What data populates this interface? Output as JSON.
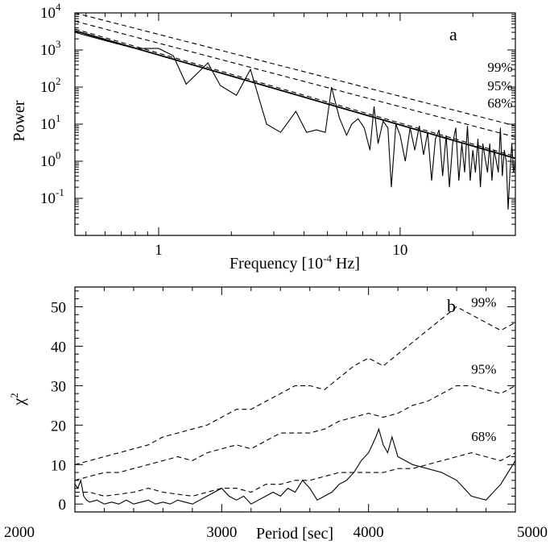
{
  "chart_data": [
    {
      "type": "line",
      "panel_label": "a",
      "xlabel": "Frequency [10",
      "xlabel_exp": "-4",
      "xlabel_tail": " Hz]",
      "ylabel": "Power",
      "x_scale": "log",
      "y_scale": "log",
      "xlim": [
        0.45,
        30
      ],
      "ylim": [
        0.01,
        10000
      ],
      "x_tick_labels": [
        {
          "value": 1,
          "label": "1"
        },
        {
          "value": 10,
          "label": "10"
        }
      ],
      "y_tick_labels": [
        {
          "value": 10000,
          "base": "10",
          "exp": "4"
        },
        {
          "value": 1000,
          "base": "10",
          "exp": "3"
        },
        {
          "value": 100,
          "base": "10",
          "exp": "2"
        },
        {
          "value": 10,
          "base": "10",
          "exp": "1"
        },
        {
          "value": 1,
          "base": "10",
          "exp": "0"
        },
        {
          "value": 0.1,
          "base": "10",
          "exp": "-1"
        }
      ],
      "level_labels": [
        {
          "text": "99%",
          "x": 23,
          "y": 260
        },
        {
          "text": "95%",
          "x": 23,
          "y": 82
        },
        {
          "text": "68%",
          "x": 23,
          "y": 28
        }
      ],
      "series": [
        {
          "style": "solid",
          "x": [
            0.45,
            0.6,
            0.8,
            1.0,
            1.15,
            1.3,
            1.6,
            1.8,
            2.1,
            2.4,
            2.8,
            3.2,
            3.7,
            4.1,
            4.5,
            4.9,
            5.2,
            5.6,
            6.0,
            6.3,
            6.7,
            7.1,
            7.5,
            7.8,
            8.1,
            8.5,
            8.9,
            9.2,
            9.6,
            10.0,
            10.5,
            11.0,
            11.5,
            12.0,
            12.5,
            13.0,
            13.5,
            14.0,
            14.5,
            15.0,
            15.5,
            16.0,
            16.5,
            17.0,
            17.5,
            18.0,
            18.5,
            19.0,
            19.5,
            20.0,
            20.5,
            21.0,
            21.5,
            22.0,
            22.5,
            23.0,
            23.5,
            24.0,
            24.5,
            25.0,
            25.5,
            26.0,
            26.5,
            27.0,
            27.5,
            28.0,
            28.5,
            29.0,
            29.5,
            30.0
          ],
          "y": [
            3000,
            1800,
            1100,
            1100,
            700,
            120,
            450,
            110,
            60,
            300,
            10,
            6,
            22,
            6,
            7,
            6,
            100,
            15,
            5,
            10,
            14,
            8,
            2,
            30,
            3,
            12,
            8,
            0.2,
            10,
            5,
            1,
            8,
            2,
            9,
            1.5,
            6,
            0.3,
            4,
            7,
            0.4,
            5,
            0.2,
            3,
            8,
            0.3,
            3,
            0.5,
            9,
            0.3,
            2,
            0.5,
            4,
            0.2,
            3,
            1.2,
            0.5,
            3,
            0.3,
            2,
            1,
            0.5,
            8,
            0.4,
            2,
            1,
            0.05,
            0.5,
            3,
            0.5,
            1
          ]
        },
        {
          "style": "fit",
          "x": [
            0.45,
            30
          ],
          "y": [
            3300,
            1.2
          ]
        },
        {
          "style": "dashed",
          "x": [
            0.45,
            30
          ],
          "y": [
            3700,
            1.35
          ]
        },
        {
          "style": "dashed",
          "x": [
            0.45,
            30
          ],
          "y": [
            6000,
            4.5
          ]
        },
        {
          "style": "dashed",
          "x": [
            0.45,
            30
          ],
          "y": [
            10000,
            9
          ]
        }
      ]
    },
    {
      "type": "line",
      "panel_label": "b",
      "xlabel": "Period [sec]",
      "ylabel": "χ",
      "ylabel_exp": "2",
      "xlim": [
        2000,
        5000
      ],
      "ylim": [
        -2,
        55
      ],
      "x_ticks": [
        2000,
        3000,
        4000,
        5000
      ],
      "x_tick_labels": [
        "2000",
        "3000",
        "4000",
        "5000"
      ],
      "y_ticks": [
        0,
        10,
        20,
        30,
        40,
        50
      ],
      "y_tick_labels": [
        "0",
        "10",
        "20",
        "30",
        "40",
        "50"
      ],
      "level_labels": [
        {
          "text": "99%",
          "x": 4700,
          "y": 50
        },
        {
          "text": "95%",
          "x": 4700,
          "y": 33
        },
        {
          "text": "68%",
          "x": 4700,
          "y": 16
        }
      ],
      "series": [
        {
          "style": "solid",
          "x": [
            2000,
            2020,
            2040,
            2060,
            2080,
            2100,
            2150,
            2200,
            2250,
            2300,
            2350,
            2400,
            2450,
            2500,
            2550,
            2600,
            2650,
            2700,
            2750,
            2800,
            2850,
            2900,
            2950,
            3000,
            3050,
            3100,
            3150,
            3200,
            3250,
            3300,
            3350,
            3400,
            3450,
            3500,
            3550,
            3600,
            3650,
            3700,
            3750,
            3800,
            3850,
            3900,
            3950,
            4000,
            4050,
            4070,
            4100,
            4130,
            4160,
            4200,
            4250,
            4300,
            4400,
            4500,
            4600,
            4700,
            4800,
            4900,
            5000
          ],
          "y": [
            5,
            4,
            6,
            2,
            1,
            0.5,
            1,
            0,
            0.5,
            0,
            1,
            0,
            0.5,
            1,
            0,
            0.5,
            0,
            1,
            0.5,
            0,
            1,
            2,
            3,
            4,
            2,
            1,
            2,
            0,
            1,
            2,
            3,
            2,
            4,
            3,
            6,
            4,
            1,
            2,
            3,
            5,
            6,
            8,
            11,
            13,
            17,
            19,
            15,
            13,
            17,
            12,
            11,
            10,
            9,
            8,
            6,
            2,
            1,
            5,
            11
          ]
        },
        {
          "style": "dashed",
          "x": [
            2000,
            2100,
            2200,
            2300,
            2400,
            2500,
            2600,
            2700,
            2800,
            2900,
            3000,
            3100,
            3200,
            3300,
            3400,
            3500,
            3600,
            3700,
            3800,
            3900,
            4000,
            4100,
            4200,
            4300,
            4400,
            4500,
            4600,
            4700,
            4800,
            4900,
            5000
          ],
          "y": [
            3,
            3,
            2,
            2.5,
            3,
            4,
            3,
            2.5,
            2,
            3,
            4,
            4,
            3,
            5,
            5,
            6,
            6,
            7,
            8,
            8,
            8,
            8,
            9,
            9,
            10,
            11,
            12,
            13,
            12,
            11,
            13
          ]
        },
        {
          "style": "dashed",
          "x": [
            2000,
            2100,
            2200,
            2300,
            2400,
            2500,
            2600,
            2700,
            2800,
            2900,
            3000,
            3100,
            3200,
            3300,
            3400,
            3500,
            3600,
            3700,
            3800,
            3900,
            4000,
            4100,
            4200,
            4300,
            4400,
            4500,
            4600,
            4700,
            4800,
            4900,
            5000
          ],
          "y": [
            6,
            7,
            8,
            8,
            9,
            10,
            11,
            12,
            11,
            13,
            14,
            15,
            14,
            16,
            18,
            18,
            18,
            19,
            21,
            22,
            23,
            22,
            23,
            25,
            26,
            28,
            30,
            30,
            29,
            28,
            30
          ]
        },
        {
          "style": "dashed",
          "x": [
            2000,
            2100,
            2200,
            2300,
            2400,
            2500,
            2600,
            2700,
            2800,
            2900,
            3000,
            3100,
            3200,
            3300,
            3400,
            3500,
            3600,
            3700,
            3800,
            3900,
            4000,
            4100,
            4200,
            4300,
            4400,
            4500,
            4600,
            4700,
            4800,
            4900,
            5000
          ],
          "y": [
            10,
            11,
            12,
            13,
            14,
            15,
            17,
            18,
            19,
            20,
            22,
            24,
            24,
            26,
            28,
            30,
            30,
            29,
            32,
            35,
            37,
            35,
            38,
            41,
            44,
            47,
            50,
            48,
            46,
            44,
            46
          ]
        }
      ]
    }
  ]
}
